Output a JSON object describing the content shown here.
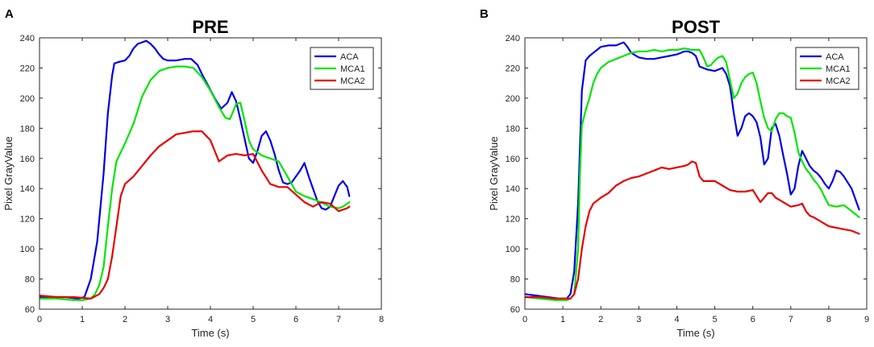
{
  "chart_data": [
    {
      "type": "line",
      "panel_label": "A",
      "title": "PRE",
      "xlabel": "Time (s)",
      "ylabel": "Pixel GrayValue",
      "xlim": [
        0,
        8
      ],
      "ylim": [
        60,
        240
      ],
      "xticks": [
        0,
        1,
        2,
        3,
        4,
        5,
        6,
        7,
        8
      ],
      "yticks": [
        60,
        80,
        100,
        120,
        140,
        160,
        180,
        200,
        220,
        240
      ],
      "legend_position": "top-right",
      "series": [
        {
          "name": "ACA",
          "color": "#0000e6",
          "x": [
            0,
            0.3,
            0.6,
            0.9,
            1.05,
            1.2,
            1.35,
            1.5,
            1.6,
            1.7,
            1.75,
            1.85,
            2.0,
            2.1,
            2.2,
            2.3,
            2.4,
            2.5,
            2.6,
            2.7,
            2.8,
            2.9,
            3.0,
            3.2,
            3.4,
            3.55,
            3.7,
            3.8,
            3.95,
            4.1,
            4.25,
            4.4,
            4.5,
            4.6,
            4.7,
            4.8,
            4.9,
            5.0,
            5.1,
            5.2,
            5.3,
            5.4,
            5.5,
            5.6,
            5.7,
            5.8,
            5.9,
            6.0,
            6.1,
            6.2,
            6.3,
            6.4,
            6.5,
            6.6,
            6.7,
            6.8,
            6.9,
            7.0,
            7.1,
            7.2,
            7.25
          ],
          "y": [
            68,
            68,
            68,
            67,
            68,
            80,
            105,
            150,
            190,
            215,
            223,
            224,
            225,
            228,
            233,
            236,
            237,
            238,
            236,
            233,
            229,
            226,
            225,
            225,
            226,
            226,
            222,
            216,
            208,
            200,
            193,
            197,
            204,
            198,
            186,
            173,
            160,
            157,
            165,
            175,
            178,
            172,
            163,
            152,
            144,
            143,
            144,
            148,
            152,
            157,
            148,
            140,
            132,
            127,
            126,
            128,
            135,
            142,
            145,
            141,
            135
          ]
        },
        {
          "name": "MCA1",
          "color": "#00e600",
          "x": [
            0,
            0.4,
            0.8,
            1.0,
            1.2,
            1.3,
            1.4,
            1.5,
            1.6,
            1.7,
            1.8,
            2.0,
            2.2,
            2.4,
            2.6,
            2.8,
            3.0,
            3.2,
            3.4,
            3.6,
            3.8,
            4.0,
            4.2,
            4.35,
            4.45,
            4.5,
            4.6,
            4.7,
            4.8,
            4.9,
            5.0,
            5.2,
            5.4,
            5.6,
            5.8,
            6.0,
            6.2,
            6.5,
            6.8,
            7.0,
            7.1,
            7.25
          ],
          "y": [
            67,
            67,
            66,
            66,
            67,
            70,
            76,
            88,
            115,
            140,
            158,
            170,
            183,
            201,
            212,
            218,
            220,
            221,
            221,
            220,
            214,
            205,
            194,
            187,
            186,
            189,
            196,
            197,
            185,
            172,
            166,
            162,
            160,
            158,
            148,
            138,
            135,
            132,
            128,
            127,
            128,
            131
          ]
        },
        {
          "name": "MCA2",
          "color": "#e60000",
          "x": [
            0,
            0.4,
            0.8,
            1.2,
            1.4,
            1.5,
            1.6,
            1.7,
            1.8,
            1.9,
            2.0,
            2.2,
            2.4,
            2.6,
            2.8,
            3.0,
            3.2,
            3.4,
            3.6,
            3.8,
            4.0,
            4.2,
            4.4,
            4.6,
            4.8,
            5.0,
            5.2,
            5.4,
            5.6,
            5.8,
            6.0,
            6.2,
            6.4,
            6.6,
            6.8,
            7.0,
            7.2,
            7.25
          ],
          "y": [
            69,
            68,
            68,
            67,
            70,
            74,
            80,
            95,
            115,
            135,
            143,
            148,
            155,
            162,
            168,
            172,
            176,
            177,
            178,
            178,
            172,
            158,
            162,
            163,
            162,
            163,
            152,
            143,
            141,
            141,
            136,
            131,
            128,
            131,
            130,
            125,
            127,
            128
          ]
        }
      ]
    },
    {
      "type": "line",
      "panel_label": "B",
      "title": "POST",
      "xlabel": "Time (s)",
      "ylabel": "Pixel GrayValue",
      "xlim": [
        0,
        9
      ],
      "ylim": [
        60,
        240
      ],
      "xticks": [
        0,
        1,
        2,
        3,
        4,
        5,
        6,
        7,
        8,
        9
      ],
      "yticks": [
        60,
        80,
        100,
        120,
        140,
        160,
        180,
        200,
        220,
        240
      ],
      "legend_position": "top-right",
      "series": [
        {
          "name": "ACA",
          "color": "#0000e6",
          "x": [
            0,
            0.3,
            0.6,
            0.9,
            1.1,
            1.2,
            1.3,
            1.4,
            1.5,
            1.6,
            1.7,
            1.8,
            1.9,
            2.0,
            2.2,
            2.4,
            2.5,
            2.6,
            2.7,
            2.8,
            3.0,
            3.2,
            3.4,
            3.6,
            3.8,
            4.0,
            4.2,
            4.3,
            4.4,
            4.5,
            4.6,
            4.8,
            5.0,
            5.1,
            5.2,
            5.3,
            5.4,
            5.5,
            5.6,
            5.7,
            5.8,
            5.9,
            6.0,
            6.1,
            6.2,
            6.3,
            6.4,
            6.5,
            6.6,
            6.7,
            6.8,
            6.9,
            7.0,
            7.1,
            7.2,
            7.3,
            7.4,
            7.5,
            7.6,
            7.7,
            7.8,
            7.9,
            8.0,
            8.1,
            8.2,
            8.3,
            8.4,
            8.5,
            8.6,
            8.7,
            8.8
          ],
          "y": [
            70,
            69,
            68,
            67,
            67,
            70,
            85,
            130,
            205,
            225,
            228,
            230,
            232,
            234,
            235,
            235,
            236,
            237,
            234,
            230,
            227,
            226,
            226,
            227,
            228,
            229,
            231,
            231,
            230,
            228,
            221,
            219,
            218,
            219,
            220,
            216,
            208,
            190,
            175,
            180,
            188,
            190,
            188,
            184,
            174,
            156,
            160,
            180,
            183,
            175,
            162,
            150,
            136,
            140,
            155,
            165,
            160,
            155,
            152,
            150,
            147,
            143,
            140,
            145,
            152,
            151,
            148,
            144,
            140,
            133,
            126
          ]
        },
        {
          "name": "MCA1",
          "color": "#00e600",
          "x": [
            0,
            0.4,
            0.8,
            1.1,
            1.2,
            1.3,
            1.4,
            1.45,
            1.5,
            1.6,
            1.7,
            1.8,
            1.9,
            2.0,
            2.2,
            2.4,
            2.6,
            2.8,
            3.0,
            3.2,
            3.4,
            3.6,
            3.8,
            4.0,
            4.2,
            4.4,
            4.6,
            4.7,
            4.8,
            4.9,
            5.0,
            5.1,
            5.2,
            5.3,
            5.4,
            5.5,
            5.6,
            5.7,
            5.8,
            5.9,
            6.0,
            6.1,
            6.2,
            6.3,
            6.4,
            6.5,
            6.6,
            6.7,
            6.8,
            6.9,
            7.0,
            7.1,
            7.2,
            7.3,
            7.4,
            7.5,
            7.6,
            7.7,
            7.8,
            7.9,
            8.0,
            8.2,
            8.4,
            8.6,
            8.8
          ],
          "y": [
            68,
            67,
            66,
            66,
            67,
            70,
            100,
            150,
            182,
            192,
            200,
            210,
            216,
            220,
            224,
            226,
            228,
            230,
            231,
            231,
            232,
            231,
            232,
            232,
            233,
            232,
            232,
            227,
            221,
            222,
            225,
            227,
            228,
            224,
            212,
            200,
            203,
            210,
            214,
            216,
            217,
            210,
            198,
            187,
            180,
            178,
            186,
            190,
            190,
            188,
            187,
            177,
            164,
            158,
            153,
            150,
            146,
            143,
            139,
            134,
            129,
            128,
            129,
            125,
            121
          ]
        },
        {
          "name": "MCA2",
          "color": "#e60000",
          "x": [
            0,
            0.4,
            0.8,
            1.2,
            1.3,
            1.4,
            1.5,
            1.6,
            1.7,
            1.8,
            1.9,
            2.0,
            2.2,
            2.4,
            2.6,
            2.8,
            3.0,
            3.2,
            3.4,
            3.6,
            3.8,
            4.0,
            4.2,
            4.3,
            4.4,
            4.5,
            4.6,
            4.7,
            4.8,
            5.0,
            5.2,
            5.4,
            5.6,
            5.8,
            6.0,
            6.2,
            6.3,
            6.4,
            6.5,
            6.6,
            6.8,
            7.0,
            7.2,
            7.3,
            7.4,
            7.5,
            7.6,
            7.8,
            8.0,
            8.2,
            8.4,
            8.6,
            8.8
          ],
          "y": [
            68,
            68,
            67,
            67,
            70,
            80,
            100,
            115,
            125,
            130,
            132,
            134,
            137,
            142,
            145,
            147,
            148,
            150,
            152,
            154,
            153,
            154,
            155,
            156,
            158,
            157,
            148,
            145,
            145,
            145,
            142,
            139,
            138,
            138,
            139,
            131,
            134,
            137,
            137,
            134,
            131,
            128,
            129,
            130,
            125,
            122,
            121,
            118,
            115,
            114,
            113,
            112,
            110
          ]
        }
      ]
    }
  ]
}
